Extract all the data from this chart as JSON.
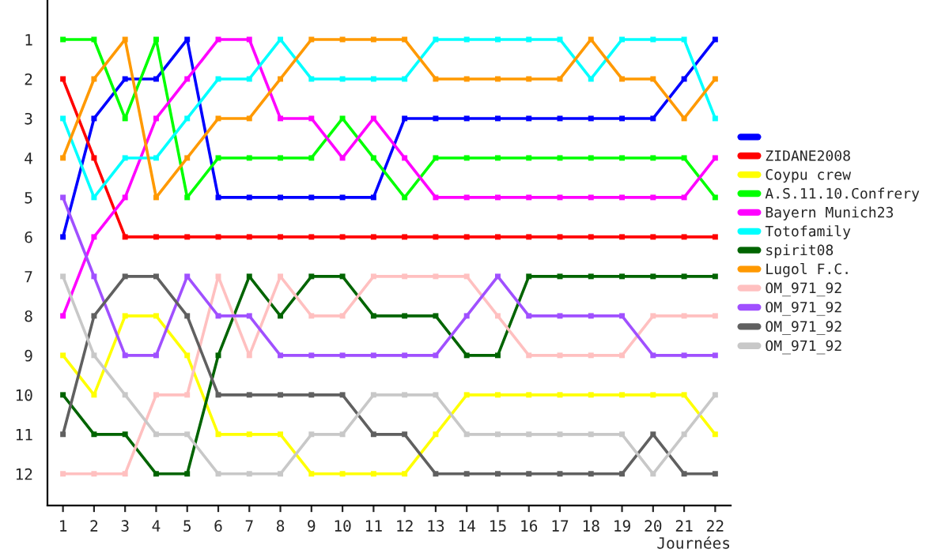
{
  "chart_data": {
    "type": "line",
    "xlabel": "Journées",
    "x": [
      1,
      2,
      3,
      4,
      5,
      6,
      7,
      8,
      9,
      10,
      11,
      12,
      13,
      14,
      15,
      16,
      17,
      18,
      19,
      20,
      21,
      22
    ],
    "xlim": [
      0.5,
      22.5
    ],
    "xticks": [
      1,
      2,
      3,
      4,
      5,
      6,
      7,
      8,
      9,
      10,
      11,
      12,
      13,
      14,
      15,
      16,
      17,
      18,
      19,
      20,
      21,
      22
    ],
    "ylim": [
      12.8,
      0
    ],
    "yticks": [
      1,
      2,
      3,
      4,
      5,
      6,
      7,
      8,
      9,
      10,
      11,
      12
    ],
    "grid": false,
    "legend": "right",
    "marker": "square",
    "line_style": "solid",
    "series": [
      {
        "color": "#0000ff",
        "values": [
          6,
          3,
          2,
          2,
          1,
          5,
          5,
          5,
          5,
          5,
          5,
          3,
          3,
          3,
          3,
          3,
          3,
          3,
          3,
          3,
          2,
          1
        ]
      },
      {
        "name": "ZIDANE2008",
        "color": "#ff0000",
        "values": [
          2,
          4,
          6,
          6,
          6,
          6,
          6,
          6,
          6,
          6,
          6,
          6,
          6,
          6,
          6,
          6,
          6,
          6,
          6,
          6,
          6,
          6
        ]
      },
      {
        "name": "Coypu crew",
        "color": "#ffff00",
        "values": [
          9,
          10,
          8,
          8,
          9,
          11,
          11,
          11,
          12,
          12,
          12,
          12,
          11,
          10,
          10,
          10,
          10,
          10,
          10,
          10,
          10,
          11
        ]
      },
      {
        "name": "A.S.11.10.Confrery",
        "color": "#00ff00",
        "values": [
          1,
          1,
          3,
          1,
          5,
          4,
          4,
          4,
          4,
          3,
          4,
          5,
          4,
          4,
          4,
          4,
          4,
          4,
          4,
          4,
          4,
          5
        ]
      },
      {
        "name": "Bayern Munich23",
        "color": "#ff00ff",
        "values": [
          8,
          6,
          5,
          3,
          2,
          1,
          1,
          3,
          3,
          4,
          3,
          4,
          5,
          5,
          5,
          5,
          5,
          5,
          5,
          5,
          5,
          4
        ]
      },
      {
        "name": "Totofamily",
        "color": "#00ffff",
        "values": [
          3,
          5,
          4,
          4,
          3,
          2,
          2,
          1,
          2,
          2,
          2,
          2,
          1,
          1,
          1,
          1,
          1,
          2,
          1,
          1,
          1,
          3
        ]
      },
      {
        "name": "spirit08",
        "color": "#006400",
        "values": [
          10,
          11,
          11,
          12,
          12,
          9,
          7,
          8,
          7,
          7,
          8,
          8,
          8,
          9,
          9,
          7,
          7,
          7,
          7,
          7,
          7,
          7
        ]
      },
      {
        "name": "Lugol F.C.",
        "color": "#ff9900",
        "values": [
          4,
          2,
          1,
          5,
          4,
          3,
          3,
          2,
          1,
          1,
          1,
          1,
          2,
          2,
          2,
          2,
          2,
          1,
          2,
          2,
          3,
          2
        ]
      },
      {
        "name": "OM_971_92",
        "color": "#ffc0c0",
        "values": [
          12,
          12,
          12,
          10,
          10,
          7,
          9,
          7,
          8,
          8,
          7,
          7,
          7,
          7,
          8,
          9,
          9,
          9,
          9,
          8,
          8,
          8
        ]
      },
      {
        "name": "OM_971_92",
        "color": "#a050ff",
        "values": [
          5,
          7,
          9,
          9,
          7,
          8,
          8,
          9,
          9,
          9,
          9,
          9,
          9,
          8,
          7,
          8,
          8,
          8,
          8,
          9,
          9,
          9
        ]
      },
      {
        "name": "OM_971_92",
        "color": "#606060",
        "values": [
          11,
          8,
          7,
          7,
          8,
          10,
          10,
          10,
          10,
          10,
          11,
          11,
          12,
          12,
          12,
          12,
          12,
          12,
          12,
          11,
          12,
          12
        ]
      },
      {
        "name": "OM_971_92",
        "color": "#c8c8c8",
        "values": [
          7,
          9,
          10,
          11,
          11,
          12,
          12,
          12,
          11,
          11,
          10,
          10,
          10,
          11,
          11,
          11,
          11,
          11,
          11,
          12,
          11,
          10
        ]
      }
    ]
  }
}
